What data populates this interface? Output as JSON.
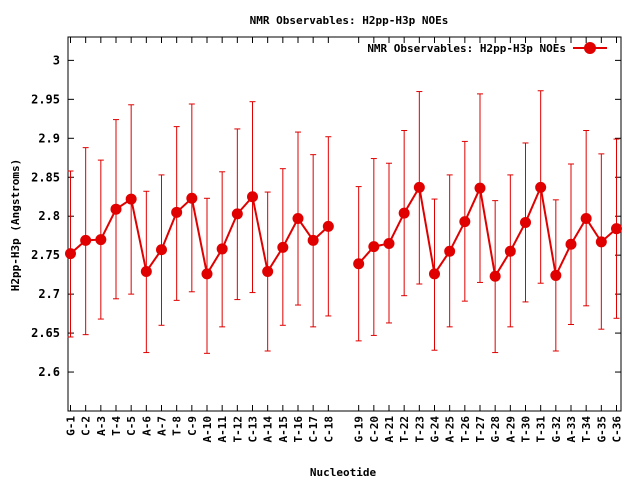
{
  "chart_data": {
    "type": "line",
    "title": "NMR Observables: H2pp-H3p NOEs",
    "xlabel": "Nucleotide",
    "ylabel": "H2pp-H3p (Angstroms)",
    "ylim": [
      2.55,
      3.03
    ],
    "yticks": [
      "2.6",
      "2.65",
      "2.7",
      "2.75",
      "2.8",
      "2.85",
      "2.9",
      "2.95",
      "3"
    ],
    "legend_position": "top-right",
    "grid": false,
    "series_color": "#e00000",
    "series": [
      {
        "name": "NMR Observables: H2pp-H3p NOEs",
        "points": [
          {
            "x": "G-1",
            "y": 2.752,
            "err_low": 2.645,
            "err_high": 2.858
          },
          {
            "x": "C-2",
            "y": 2.769,
            "err_low": 2.648,
            "err_high": 2.888
          },
          {
            "x": "A-3",
            "y": 2.77,
            "err_low": 2.668,
            "err_high": 2.872
          },
          {
            "x": "T-4",
            "y": 2.809,
            "err_low": 2.694,
            "err_high": 2.924
          },
          {
            "x": "C-5",
            "y": 2.822,
            "err_low": 2.7,
            "err_high": 2.943
          },
          {
            "x": "A-6",
            "y": 2.729,
            "err_low": 2.625,
            "err_high": 2.832
          },
          {
            "x": "A-7",
            "y": 2.757,
            "err_low": 2.66,
            "err_high": 2.853
          },
          {
            "x": "T-8",
            "y": 2.805,
            "err_low": 2.692,
            "err_high": 2.915
          },
          {
            "x": "C-9",
            "y": 2.823,
            "err_low": 2.703,
            "err_high": 2.944
          },
          {
            "x": "A-10",
            "y": 2.726,
            "err_low": 2.624,
            "err_high": 2.823
          },
          {
            "x": "A-11",
            "y": 2.758,
            "err_low": 2.658,
            "err_high": 2.857
          },
          {
            "x": "T-12",
            "y": 2.803,
            "err_low": 2.693,
            "err_high": 2.912
          },
          {
            "x": "C-13",
            "y": 2.825,
            "err_low": 2.702,
            "err_high": 2.947
          },
          {
            "x": "A-14",
            "y": 2.729,
            "err_low": 2.627,
            "err_high": 2.831
          },
          {
            "x": "A-15",
            "y": 2.76,
            "err_low": 2.66,
            "err_high": 2.861
          },
          {
            "x": "T-16",
            "y": 2.797,
            "err_low": 2.686,
            "err_high": 2.908
          },
          {
            "x": "C-17",
            "y": 2.769,
            "err_low": 2.658,
            "err_high": 2.879
          },
          {
            "x": "C-18",
            "y": 2.787,
            "err_low": 2.672,
            "err_high": 2.902
          },
          {
            "x": "",
            "y": null
          },
          {
            "x": "G-19",
            "y": 2.739,
            "err_low": 2.64,
            "err_high": 2.838
          },
          {
            "x": "C-20",
            "y": 2.761,
            "err_low": 2.647,
            "err_high": 2.874
          },
          {
            "x": "A-21",
            "y": 2.765,
            "err_low": 2.663,
            "err_high": 2.868
          },
          {
            "x": "T-22",
            "y": 2.804,
            "err_low": 2.698,
            "err_high": 2.91
          },
          {
            "x": "T-23",
            "y": 2.837,
            "err_low": 2.713,
            "err_high": 2.96
          },
          {
            "x": "G-24",
            "y": 2.726,
            "err_low": 2.628,
            "err_high": 2.822
          },
          {
            "x": "A-25",
            "y": 2.755,
            "err_low": 2.658,
            "err_high": 2.853
          },
          {
            "x": "T-26",
            "y": 2.793,
            "err_low": 2.691,
            "err_high": 2.896
          },
          {
            "x": "T-27",
            "y": 2.836,
            "err_low": 2.715,
            "err_high": 2.957
          },
          {
            "x": "G-28",
            "y": 2.723,
            "err_low": 2.625,
            "err_high": 2.82
          },
          {
            "x": "A-29",
            "y": 2.755,
            "err_low": 2.658,
            "err_high": 2.853
          },
          {
            "x": "T-30",
            "y": 2.792,
            "err_low": 2.69,
            "err_high": 2.894
          },
          {
            "x": "T-31",
            "y": 2.837,
            "err_low": 2.714,
            "err_high": 2.961
          },
          {
            "x": "G-32",
            "y": 2.724,
            "err_low": 2.627,
            "err_high": 2.821
          },
          {
            "x": "A-33",
            "y": 2.764,
            "err_low": 2.661,
            "err_high": 2.867
          },
          {
            "x": "T-34",
            "y": 2.797,
            "err_low": 2.685,
            "err_high": 2.91
          },
          {
            "x": "G-35",
            "y": 2.767,
            "err_low": 2.655,
            "err_high": 2.88
          },
          {
            "x": "C-36",
            "y": 2.784,
            "err_low": 2.669,
            "err_high": 2.899
          }
        ]
      }
    ]
  }
}
